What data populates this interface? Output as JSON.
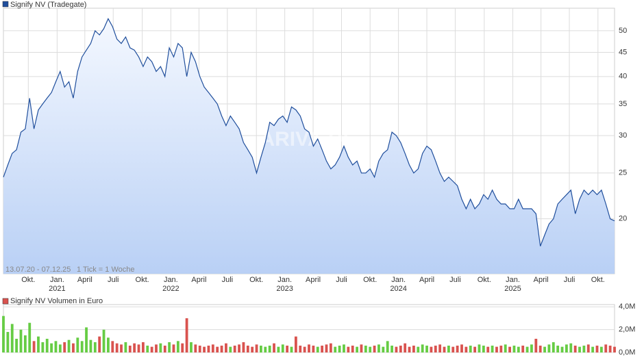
{
  "chart_data": [
    {
      "type": "line",
      "title": "Signify NV (Tradegate)",
      "color": "#1f4e9c",
      "range_label": "13.07.20 - 07.12.25",
      "tick_note": "1 Tick = 1 Woche",
      "watermark": "ARIVA.DE",
      "log_scale": true,
      "grid": true,
      "values": [
        24.5,
        26,
        27.5,
        28,
        30.5,
        31,
        36,
        31,
        34,
        35,
        36,
        37,
        39,
        41,
        38,
        39,
        36,
        41,
        44,
        45.5,
        47,
        50,
        49,
        50.5,
        53,
        51,
        48,
        47,
        48.5,
        46,
        45.5,
        44,
        42,
        44,
        43,
        41,
        42,
        40,
        46,
        44,
        47,
        46,
        40,
        45,
        43,
        40,
        38,
        37,
        36,
        35,
        33,
        31.5,
        33,
        32,
        31,
        29,
        28,
        27,
        25,
        27,
        29,
        32,
        31.5,
        32.5,
        33,
        32,
        34.5,
        34,
        33,
        31,
        30.5,
        28.5,
        29.5,
        28,
        26.5,
        25.5,
        26,
        27,
        28.5,
        27,
        26,
        26.5,
        25,
        25,
        25.5,
        24.5,
        26.5,
        27.5,
        28,
        30.5,
        30,
        29,
        27.5,
        26,
        25,
        25.5,
        27.5,
        28.5,
        28,
        26.5,
        25,
        24,
        24.5,
        24,
        23.5,
        22,
        21,
        22,
        21,
        21.5,
        22.5,
        22,
        23,
        22,
        21.5,
        21.5,
        21,
        21,
        22,
        21,
        21,
        21,
        20.5,
        17.5,
        18.5,
        19.5,
        20,
        21.5,
        22,
        22.5,
        23,
        20.5,
        22,
        23,
        22.5,
        23,
        22.5,
        23,
        21.5,
        20,
        19.8
      ],
      "xlim": [
        0,
        140
      ],
      "xticks": [
        {
          "value": 5.7,
          "label": "Okt."
        },
        {
          "value": 12.3,
          "label": "Jan."
        },
        {
          "value": 18.65,
          "label": "April"
        },
        {
          "value": 25.15,
          "label": "Juli"
        },
        {
          "value": 31.8,
          "label": "Okt."
        },
        {
          "value": 38.35,
          "label": "Jan."
        },
        {
          "value": 44.8,
          "label": "April"
        },
        {
          "value": 51.3,
          "label": "Juli"
        },
        {
          "value": 57.95,
          "label": "Okt."
        },
        {
          "value": 64.45,
          "label": "Jan."
        },
        {
          "value": 70.95,
          "label": "April"
        },
        {
          "value": 77.45,
          "label": "Juli"
        },
        {
          "value": 84,
          "label": "Okt."
        },
        {
          "value": 90.5,
          "label": "Jan."
        },
        {
          "value": 97,
          "label": "April"
        },
        {
          "value": 103.5,
          "label": "Juli"
        },
        {
          "value": 110.15,
          "label": "Okt."
        },
        {
          "value": 116.7,
          "label": "Jan."
        },
        {
          "value": 123.15,
          "label": "April"
        },
        {
          "value": 129.65,
          "label": "Juli"
        },
        {
          "value": 136.2,
          "label": "Okt."
        }
      ],
      "year_ticks": [
        {
          "value": 12.3,
          "label": "2021"
        },
        {
          "value": 38.35,
          "label": "2022"
        },
        {
          "value": 64.45,
          "label": "2023"
        },
        {
          "value": 90.5,
          "label": "2024"
        },
        {
          "value": 116.7,
          "label": "2025"
        }
      ],
      "ylim": [
        15.3,
        55.8
      ],
      "yticks": [
        20,
        25,
        30,
        35,
        40,
        45,
        50
      ]
    },
    {
      "type": "bar",
      "title": "Signify NV Volumen in Euro",
      "color": "#d9534f",
      "up_color": "#66cc44",
      "down_color": "#d9534f",
      "values": [
        3.2,
        1.8,
        2.5,
        1.2,
        2.0,
        1.5,
        2.6,
        1.0,
        1.4,
        0.9,
        1.2,
        0.8,
        1.0,
        0.7,
        0.9,
        1.1,
        0.8,
        1.3,
        1.0,
        2.2,
        1.1,
        0.9,
        1.4,
        2.0,
        1.3,
        1.0,
        0.8,
        0.7,
        0.9,
        0.6,
        0.8,
        0.7,
        0.9,
        0.6,
        0.5,
        0.7,
        0.8,
        0.6,
        0.9,
        0.7,
        1.0,
        0.8,
        3.0,
        0.9,
        0.7,
        0.6,
        0.5,
        0.6,
        0.7,
        0.5,
        0.6,
        0.8,
        0.5,
        0.6,
        0.7,
        0.9,
        0.6,
        0.5,
        0.7,
        0.6,
        0.5,
        0.6,
        0.8,
        0.5,
        0.7,
        0.6,
        0.5,
        1.4,
        0.6,
        0.5,
        0.7,
        0.6,
        0.5,
        0.6,
        0.7,
        0.8,
        0.5,
        0.6,
        0.7,
        0.5,
        0.6,
        0.5,
        0.7,
        0.6,
        0.5,
        0.6,
        0.7,
        0.5,
        1.0,
        0.6,
        0.5,
        0.6,
        0.8,
        0.5,
        0.6,
        0.5,
        0.7,
        0.6,
        0.5,
        0.6,
        0.7,
        0.5,
        0.6,
        0.5,
        0.6,
        0.7,
        0.5,
        0.6,
        0.5,
        0.7,
        0.6,
        0.5,
        0.6,
        0.5,
        0.6,
        0.7,
        0.5,
        0.6,
        0.5,
        0.6,
        0.5,
        0.7,
        1.2,
        0.6,
        0.5,
        0.7,
        0.9,
        0.6,
        0.5,
        0.7,
        0.8,
        0.6,
        0.5,
        0.6,
        0.7,
        0.5,
        0.6,
        0.5,
        0.7,
        0.6,
        0.5
      ],
      "xlim": [
        0,
        140
      ],
      "ylim": [
        0,
        4.2
      ],
      "yticks": [
        {
          "value": 0,
          "label": "0,0M"
        },
        {
          "value": 2,
          "label": "2,0M"
        },
        {
          "value": 4,
          "label": "4,0M"
        }
      ]
    }
  ]
}
